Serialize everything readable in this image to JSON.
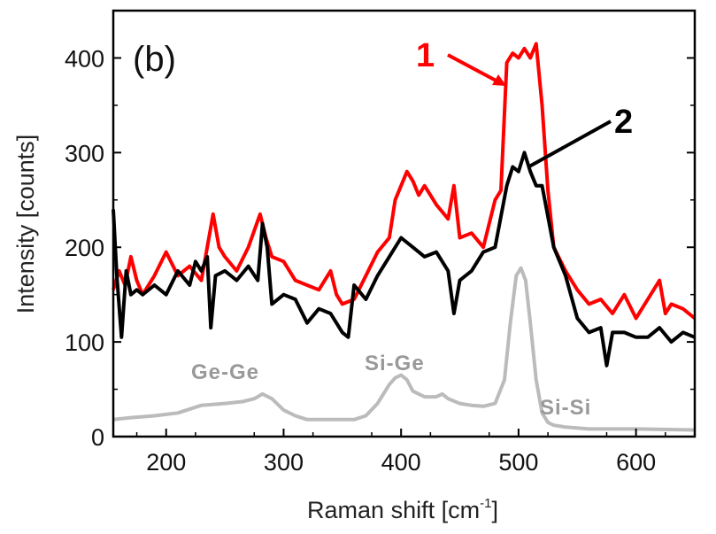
{
  "chart_data": {
    "type": "line",
    "panel_label": "(b)",
    "xlabel": "Raman shift [cm",
    "xlabel_sup": "-1",
    "xlabel_end": "]",
    "ylabel": "Intensity [counts]",
    "xlim": [
      155,
      650
    ],
    "ylim": [
      0,
      450
    ],
    "xticks": [
      200,
      300,
      400,
      500,
      600
    ],
    "yticks": [
      0,
      100,
      200,
      300,
      400
    ],
    "grid": false,
    "series": [
      {
        "name": "1",
        "color": "#ff0000",
        "x": [
          155,
          160,
          165,
          170,
          175,
          180,
          190,
          200,
          210,
          220,
          230,
          240,
          245,
          250,
          260,
          270,
          280,
          285,
          290,
          300,
          310,
          320,
          330,
          340,
          345,
          350,
          360,
          370,
          380,
          390,
          395,
          400,
          405,
          410,
          415,
          420,
          430,
          440,
          445,
          450,
          460,
          470,
          480,
          485,
          490,
          495,
          500,
          505,
          510,
          515,
          520,
          525,
          530,
          540,
          550,
          560,
          570,
          580,
          590,
          600,
          610,
          620,
          625,
          630,
          640,
          650
        ],
        "y": [
          155,
          175,
          160,
          190,
          165,
          150,
          170,
          195,
          170,
          180,
          165,
          235,
          200,
          190,
          175,
          200,
          235,
          210,
          190,
          185,
          165,
          160,
          155,
          175,
          150,
          140,
          145,
          170,
          195,
          210,
          250,
          265,
          280,
          270,
          255,
          265,
          245,
          230,
          265,
          210,
          215,
          200,
          250,
          260,
          395,
          405,
          400,
          410,
          400,
          415,
          350,
          260,
          200,
          175,
          155,
          140,
          145,
          130,
          150,
          125,
          145,
          165,
          130,
          140,
          135,
          125
        ]
      },
      {
        "name": "2",
        "color": "#000000",
        "x": [
          155,
          158,
          162,
          166,
          170,
          175,
          180,
          190,
          200,
          210,
          220,
          225,
          230,
          235,
          238,
          242,
          250,
          260,
          270,
          278,
          282,
          286,
          290,
          300,
          310,
          320,
          330,
          340,
          350,
          355,
          360,
          370,
          380,
          390,
          400,
          410,
          420,
          430,
          440,
          445,
          450,
          460,
          470,
          480,
          490,
          495,
          500,
          505,
          510,
          515,
          520,
          530,
          540,
          550,
          560,
          570,
          575,
          580,
          590,
          600,
          610,
          620,
          630,
          640,
          650
        ],
        "y": [
          240,
          170,
          105,
          175,
          150,
          155,
          150,
          160,
          150,
          175,
          160,
          185,
          175,
          190,
          115,
          170,
          175,
          165,
          180,
          165,
          225,
          200,
          140,
          150,
          145,
          120,
          135,
          130,
          110,
          105,
          160,
          145,
          170,
          190,
          210,
          200,
          190,
          195,
          175,
          130,
          165,
          175,
          195,
          200,
          265,
          285,
          280,
          300,
          280,
          265,
          265,
          200,
          170,
          125,
          110,
          115,
          75,
          110,
          110,
          105,
          105,
          115,
          100,
          110,
          105
        ]
      },
      {
        "name": "",
        "color": "#bbbbbb",
        "x": [
          155,
          170,
          190,
          210,
          230,
          250,
          265,
          275,
          282,
          290,
          300,
          310,
          320,
          340,
          360,
          370,
          380,
          390,
          395,
          400,
          405,
          410,
          420,
          430,
          435,
          440,
          450,
          460,
          470,
          480,
          488,
          493,
          498,
          502,
          506,
          510,
          515,
          520,
          525,
          530,
          540,
          560,
          600,
          650
        ],
        "y": [
          18,
          20,
          22,
          25,
          33,
          35,
          37,
          40,
          45,
          40,
          28,
          22,
          18,
          18,
          18,
          22,
          35,
          55,
          62,
          65,
          60,
          48,
          42,
          42,
          45,
          40,
          35,
          33,
          32,
          35,
          60,
          120,
          170,
          178,
          165,
          120,
          60,
          25,
          15,
          12,
          10,
          8,
          8,
          7
        ]
      }
    ],
    "annotations": [
      {
        "text": "Ge-Ge",
        "x": 270,
        "y": 75,
        "color": "#999999"
      },
      {
        "text": "Si-Ge",
        "x": 425,
        "y": 85,
        "color": "#999999"
      },
      {
        "text": "Si-Si",
        "x": 560,
        "y": 40,
        "color": "#999999"
      },
      {
        "text": "1",
        "color": "#ff0000"
      },
      {
        "text": "2",
        "color": "#000000"
      }
    ]
  }
}
